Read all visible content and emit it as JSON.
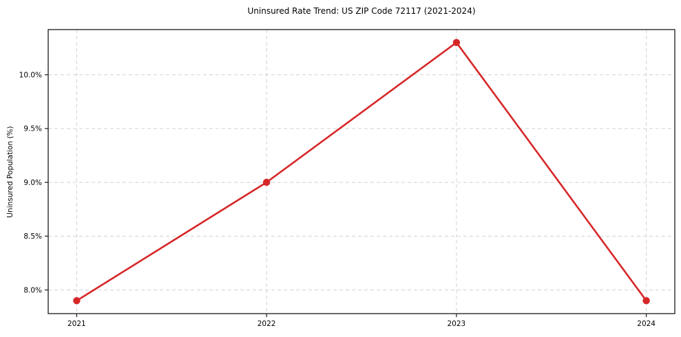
{
  "chart_data": {
    "type": "line",
    "title": "Uninsured Rate Trend: US ZIP Code 72117 (2021-2024)",
    "xlabel": "",
    "ylabel": "Uninsured Population (%)",
    "x": [
      2021,
      2022,
      2023,
      2024
    ],
    "series": [
      {
        "name": "Uninsured Population (%)",
        "values": [
          7.9,
          9.0,
          10.3,
          7.9
        ]
      }
    ],
    "xticks": {
      "values": [
        2021,
        2022,
        2023,
        2024
      ],
      "labels": [
        "2021",
        "2022",
        "2023",
        "2024"
      ]
    },
    "yticks": {
      "values": [
        8.0,
        8.5,
        9.0,
        9.5,
        10.0
      ],
      "labels": [
        "8.0%",
        "8.5%",
        "9.0%",
        "9.5%",
        "10.0%"
      ]
    },
    "xlim": [
      2020.85,
      2024.15
    ],
    "ylim": [
      7.78,
      10.42
    ],
    "grid": true,
    "grid_style": "dashed",
    "legend": false,
    "colors": {
      "line": "#d62728",
      "marker": "#d62728",
      "grid": "#cccccc",
      "axis": "#1a1a1a",
      "text": "#000000",
      "background": "#ffffff"
    }
  }
}
